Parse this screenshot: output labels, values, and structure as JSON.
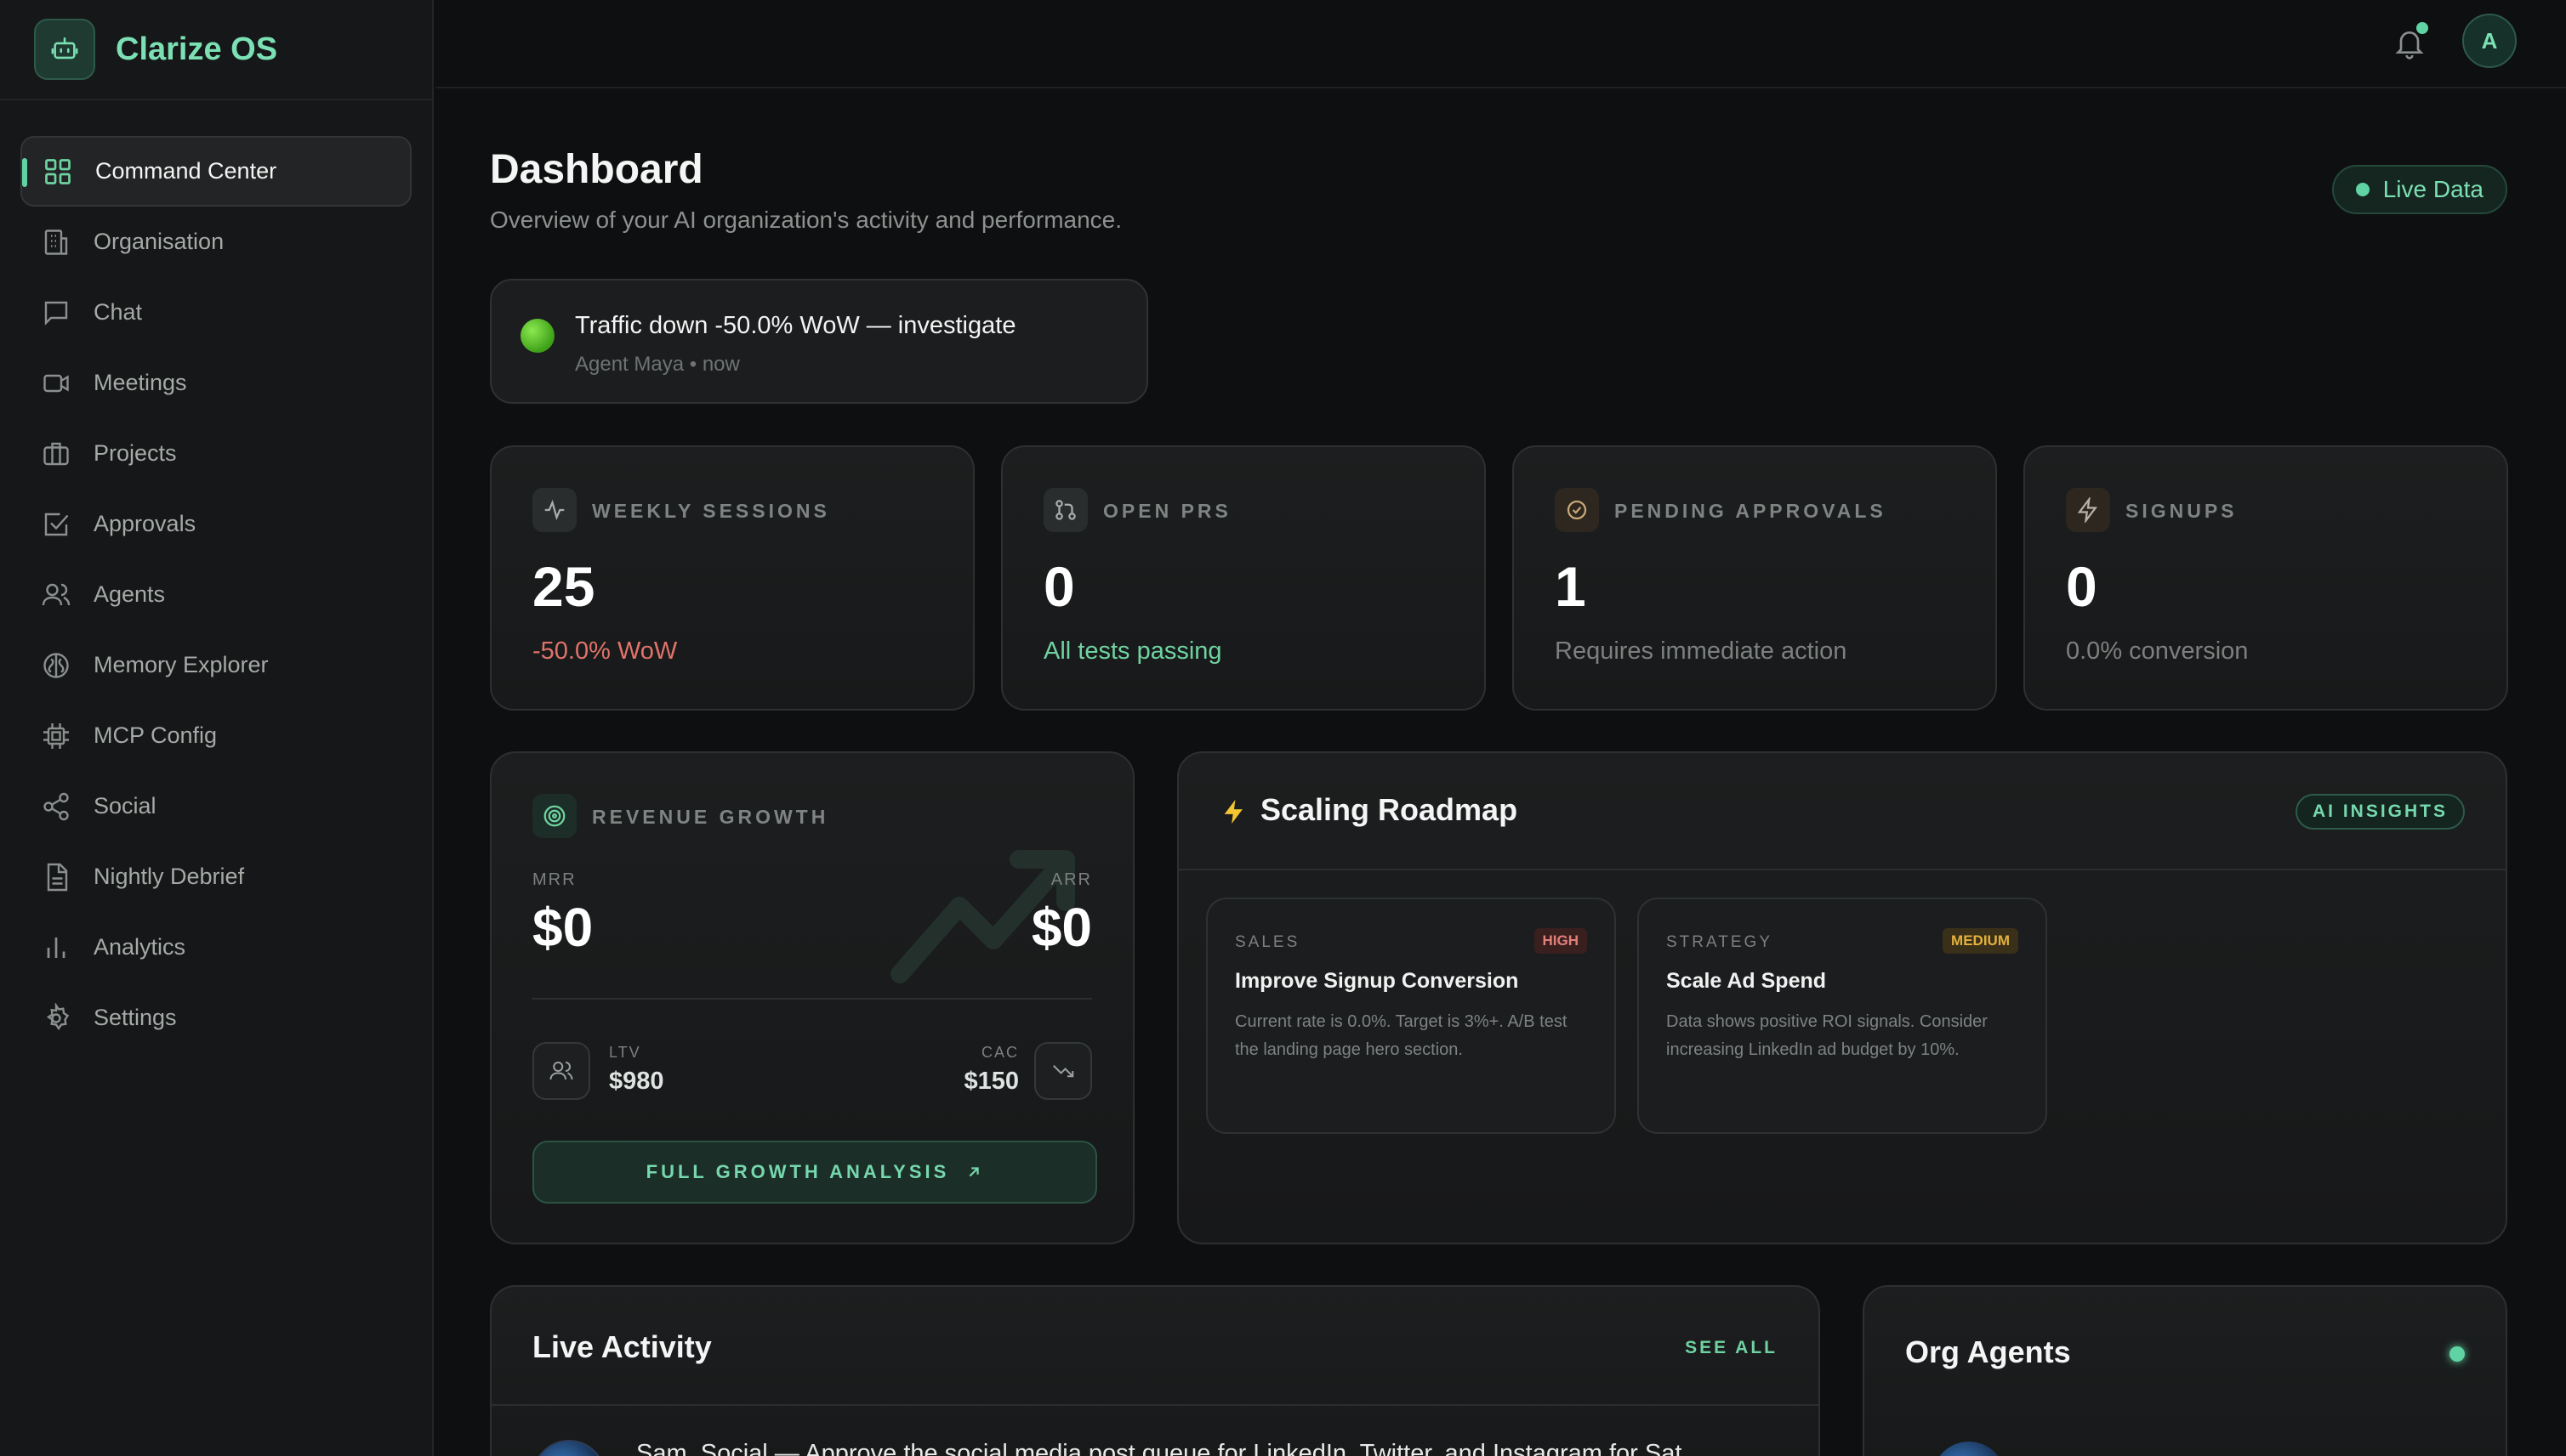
{
  "brand": {
    "name": "Clarize OS",
    "logo_icon": "robot-icon"
  },
  "sidebar": {
    "items": [
      {
        "label": "Command Center",
        "icon": "grid-icon",
        "active": true
      },
      {
        "label": "Organisation",
        "icon": "building-icon"
      },
      {
        "label": "Chat",
        "icon": "chat-icon"
      },
      {
        "label": "Meetings",
        "icon": "video-icon"
      },
      {
        "label": "Projects",
        "icon": "briefcase-icon"
      },
      {
        "label": "Approvals",
        "icon": "check-square-icon"
      },
      {
        "label": "Agents",
        "icon": "users-icon"
      },
      {
        "label": "Memory Explorer",
        "icon": "brain-icon"
      },
      {
        "label": "MCP Config",
        "icon": "chip-icon"
      },
      {
        "label": "Social",
        "icon": "share-icon"
      },
      {
        "label": "Nightly Debrief",
        "icon": "document-icon"
      },
      {
        "label": "Analytics",
        "icon": "bar-chart-icon"
      },
      {
        "label": "Settings",
        "icon": "gear-icon"
      }
    ]
  },
  "topbar": {
    "avatar_initial": "A",
    "notification_dot": true
  },
  "header": {
    "title": "Dashboard",
    "subtitle": "Overview of your AI organization's activity and performance.",
    "live_label": "Live Data"
  },
  "alert": {
    "title": "Traffic down -50.0% WoW — investigate",
    "agent": "Agent Maya",
    "time": "now"
  },
  "stats": [
    {
      "label": "WEEKLY SESSIONS",
      "value": "25",
      "note": "-50.0% WoW",
      "note_color": "#e0736a",
      "icon": "activity-icon"
    },
    {
      "label": "OPEN PRS",
      "value": "0",
      "note": "All tests passing",
      "note_color": "#6fd3a1",
      "icon": "git-pull-icon"
    },
    {
      "label": "PENDING APPROVALS",
      "value": "1",
      "note": "Requires immediate action",
      "note_color": "#7c807e",
      "icon": "check-circle-icon"
    },
    {
      "label": "SIGNUPS",
      "value": "0",
      "note": "0.0% conversion",
      "note_color": "#7c807e",
      "icon": "bolt-icon"
    }
  ],
  "revenue": {
    "title": "REVENUE GROWTH",
    "mrr_label": "MRR",
    "mrr": "$0",
    "arr_label": "ARR",
    "arr": "$0",
    "ltv_label": "LTV",
    "ltv": "$980",
    "cac_label": "CAC",
    "cac": "$150",
    "button": "FULL GROWTH ANALYSIS"
  },
  "roadmap": {
    "title": "Scaling Roadmap",
    "badge": "AI INSIGHTS",
    "cards": [
      {
        "category": "SALES",
        "priority": "HIGH",
        "title": "Improve Signup Conversion",
        "body": "Current rate is 0.0%. Target is 3%+. A/B test the landing page hero section."
      },
      {
        "category": "STRATEGY",
        "priority": "MEDIUM",
        "title": "Scale Ad Spend",
        "body": "Data shows positive ROI signals. Consider increasing LinkedIn ad budget by 10%."
      }
    ]
  },
  "activity": {
    "title": "Live Activity",
    "see_all": "SEE ALL",
    "first_item": "Sam, Social — Approve the social media post queue for LinkedIn, Twitter, and Instagram for Sat"
  },
  "org_agents": {
    "title": "Org Agents"
  },
  "colors": {
    "accent": "#5fd3a3",
    "danger": "#e0736a",
    "warning": "#e3b13b",
    "bg": "#0e0f10"
  }
}
